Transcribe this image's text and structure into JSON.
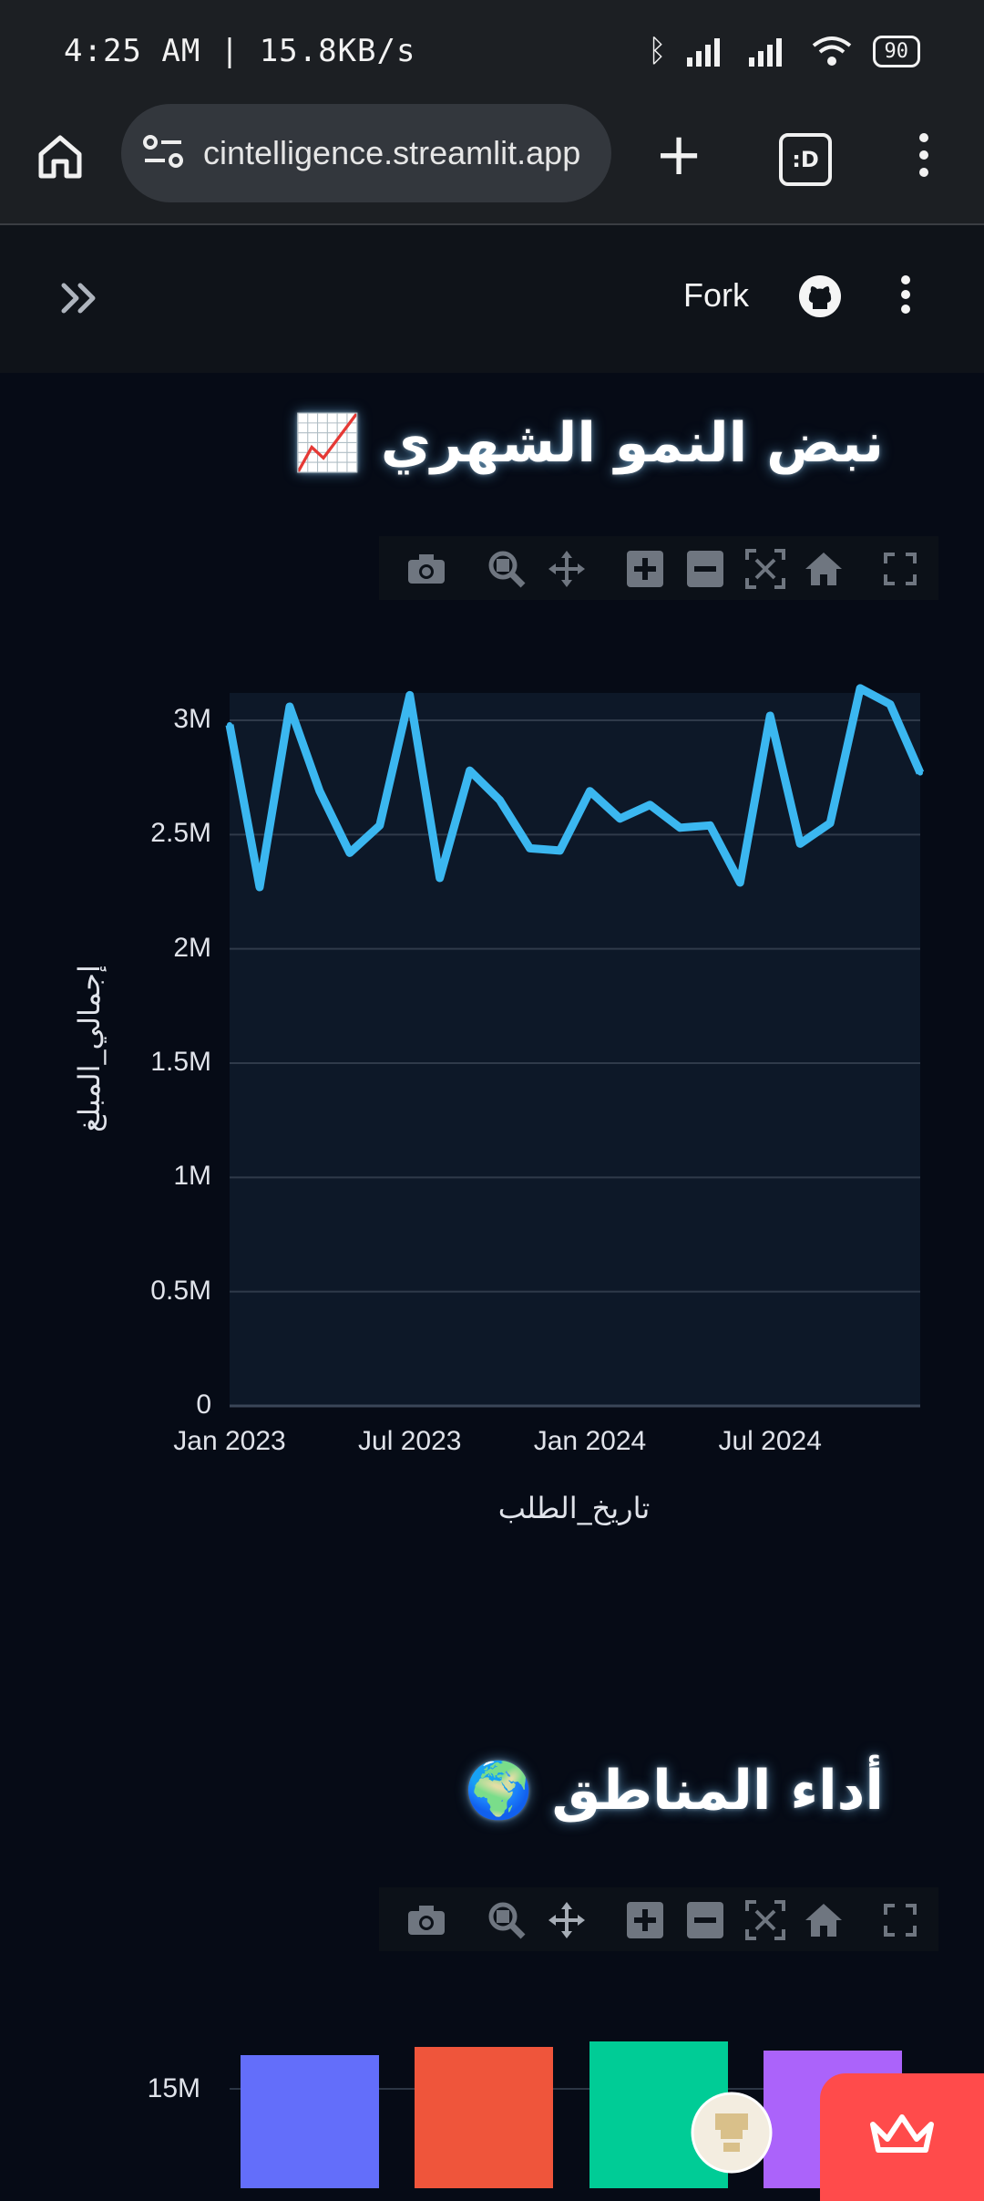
{
  "status": {
    "time_speed": "4:25 AM | 15.8KB/s",
    "battery": "90"
  },
  "browser": {
    "url": "cintelligence.streamlit.app"
  },
  "app_header": {
    "fork_label": "Fork"
  },
  "section1": {
    "title": "نبض النمو الشهري 📈"
  },
  "section2": {
    "title": "أداء المناطق 🌍"
  },
  "colors": {
    "line": "#3bb7f0",
    "plot_bg": "#0d1828",
    "page_bg": "#060b16"
  },
  "chart_data": [
    {
      "type": "line",
      "xlabel": "تاريخ_الطلب",
      "ylabel": "إجمالي_المبلغ",
      "ylim": [
        0,
        3000000
      ],
      "y_ticks": [
        "0",
        "0.5M",
        "1M",
        "1.5M",
        "2M",
        "2.5M",
        "3M"
      ],
      "x_ticks": [
        "Jan 2023",
        "Jul 2023",
        "Jan 2024",
        "Jul 2024"
      ],
      "x": [
        "2023-01",
        "2023-02",
        "2023-03",
        "2023-04",
        "2023-05",
        "2023-06",
        "2023-07",
        "2023-08",
        "2023-09",
        "2023-10",
        "2023-11",
        "2023-12",
        "2024-01",
        "2024-02",
        "2024-03",
        "2024-04",
        "2024-05",
        "2024-06",
        "2024-07",
        "2024-08",
        "2024-09",
        "2024-10",
        "2024-11",
        "2024-12"
      ],
      "values": [
        2980000,
        2270000,
        3060000,
        2690000,
        2420000,
        2540000,
        3110000,
        2310000,
        2780000,
        2650000,
        2440000,
        2430000,
        2690000,
        2570000,
        2630000,
        2530000,
        2540000,
        2290000,
        3020000,
        2460000,
        2550000,
        3140000,
        3070000,
        2770000
      ],
      "grid": true
    },
    {
      "type": "bar",
      "y_ticks": [
        "15M"
      ],
      "colors": [
        "#636efa",
        "#ef553b",
        "#00cc96",
        "#ab63fa"
      ]
    }
  ]
}
